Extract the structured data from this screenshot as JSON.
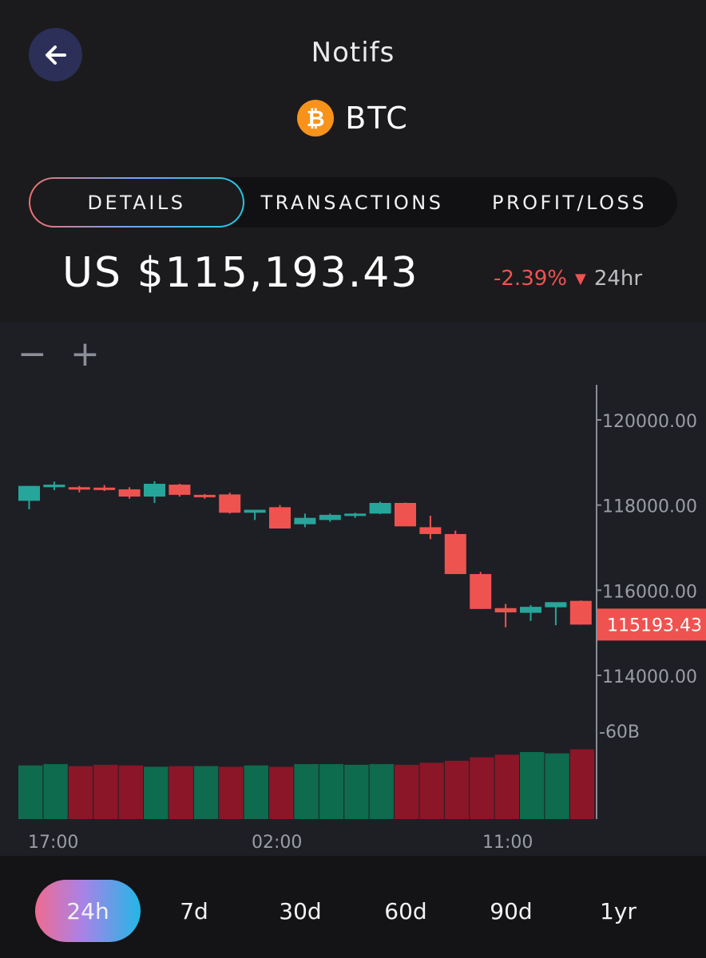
{
  "header": {
    "back_icon": "arrow-left-icon",
    "logo_text": "Notifs",
    "coin": {
      "symbol": "BTC",
      "icon": "bitcoin-icon",
      "color": "#f7931a"
    }
  },
  "tabs": [
    {
      "label": "DETAILS",
      "active": true
    },
    {
      "label": "TRANSACTIONS",
      "active": false
    },
    {
      "label": "PROFIT/LOSS",
      "active": false
    }
  ],
  "price": {
    "value": "US $115,193.43",
    "change": "-2.39%",
    "change_color": "#ef5350",
    "direction_icon": "triangle-down-icon",
    "period": "24hr"
  },
  "zoom": {
    "out_label": "−",
    "in_label": "+"
  },
  "chart_data": {
    "type": "candlestick",
    "y_ticks": [
      "120000.00",
      "118000.00",
      "116000.00",
      "114000.00"
    ],
    "current_price_label": "115193.43",
    "volume_label": "-60B",
    "x_ticks": [
      "17:00",
      "02:00",
      "11:00"
    ],
    "ylim": [
      113000,
      121000
    ],
    "up_color": "#26a69a",
    "down_color": "#ef5350",
    "candles": [
      {
        "o": 118100,
        "h": 118400,
        "l": 117900,
        "c": 118450
      },
      {
        "o": 118420,
        "h": 118550,
        "l": 118350,
        "c": 118480
      },
      {
        "o": 118420,
        "h": 118450,
        "l": 118300,
        "c": 118380
      },
      {
        "o": 118410,
        "h": 118470,
        "l": 118330,
        "c": 118370
      },
      {
        "o": 118370,
        "h": 118420,
        "l": 118150,
        "c": 118200
      },
      {
        "o": 118200,
        "h": 118560,
        "l": 118050,
        "c": 118500
      },
      {
        "o": 118480,
        "h": 118500,
        "l": 118200,
        "c": 118240
      },
      {
        "o": 118240,
        "h": 118260,
        "l": 118150,
        "c": 118190
      },
      {
        "o": 118250,
        "h": 118290,
        "l": 117800,
        "c": 117820
      },
      {
        "o": 117820,
        "h": 117880,
        "l": 117650,
        "c": 117890
      },
      {
        "o": 117950,
        "h": 118000,
        "l": 117450,
        "c": 117450
      },
      {
        "o": 117550,
        "h": 117800,
        "l": 117480,
        "c": 117700
      },
      {
        "o": 117650,
        "h": 117800,
        "l": 117610,
        "c": 117770
      },
      {
        "o": 117760,
        "h": 117820,
        "l": 117700,
        "c": 117800
      },
      {
        "o": 117800,
        "h": 118080,
        "l": 117790,
        "c": 118050
      },
      {
        "o": 118050,
        "h": 118060,
        "l": 117530,
        "c": 117500
      },
      {
        "o": 117480,
        "h": 117750,
        "l": 117200,
        "c": 117320
      },
      {
        "o": 117320,
        "h": 117400,
        "l": 116380,
        "c": 116380
      },
      {
        "o": 116380,
        "h": 116430,
        "l": 115560,
        "c": 115560
      },
      {
        "o": 115580,
        "h": 115680,
        "l": 115130,
        "c": 115480
      },
      {
        "o": 115470,
        "h": 115650,
        "l": 115280,
        "c": 115610
      },
      {
        "o": 115600,
        "h": 115700,
        "l": 115180,
        "c": 115720
      },
      {
        "o": 115750,
        "h": 115760,
        "l": 115190,
        "c": 115193
      }
    ],
    "volumes": [
      {
        "v": 0.8,
        "dir": "up"
      },
      {
        "v": 0.82,
        "dir": "up"
      },
      {
        "v": 0.79,
        "dir": "down"
      },
      {
        "v": 0.81,
        "dir": "down"
      },
      {
        "v": 0.8,
        "dir": "down"
      },
      {
        "v": 0.78,
        "dir": "up"
      },
      {
        "v": 0.79,
        "dir": "down"
      },
      {
        "v": 0.79,
        "dir": "up"
      },
      {
        "v": 0.78,
        "dir": "down"
      },
      {
        "v": 0.8,
        "dir": "up"
      },
      {
        "v": 0.78,
        "dir": "down"
      },
      {
        "v": 0.82,
        "dir": "up"
      },
      {
        "v": 0.82,
        "dir": "up"
      },
      {
        "v": 0.81,
        "dir": "up"
      },
      {
        "v": 0.82,
        "dir": "up"
      },
      {
        "v": 0.81,
        "dir": "down"
      },
      {
        "v": 0.84,
        "dir": "down"
      },
      {
        "v": 0.87,
        "dir": "down"
      },
      {
        "v": 0.92,
        "dir": "down"
      },
      {
        "v": 0.96,
        "dir": "down"
      },
      {
        "v": 1.0,
        "dir": "up"
      },
      {
        "v": 0.98,
        "dir": "up"
      },
      {
        "v": 1.04,
        "dir": "down"
      }
    ],
    "volume_up_color": "#0e6b4d",
    "volume_down_color": "#8a1628"
  },
  "ranges": [
    {
      "label": "24h",
      "active": true
    },
    {
      "label": "7d",
      "active": false
    },
    {
      "label": "30d",
      "active": false
    },
    {
      "label": "60d",
      "active": false
    },
    {
      "label": "90d",
      "active": false
    },
    {
      "label": "1yr",
      "active": false
    }
  ]
}
